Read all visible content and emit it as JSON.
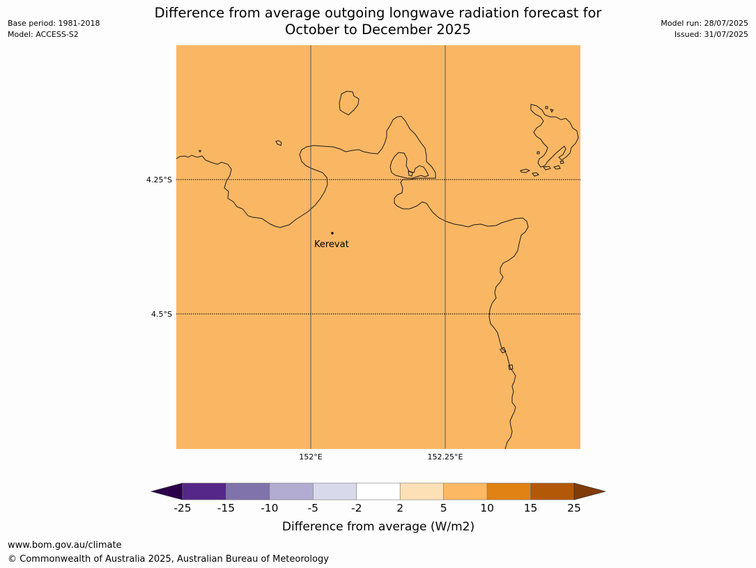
{
  "title_line1": "Difference from average outgoing longwave radiation forecast for",
  "title_line2": "October to December 2025",
  "meta_left": {
    "base_period": "Base period: 1981-2018",
    "model": "Model: ACCESS-S2"
  },
  "meta_right": {
    "model_run": "Model run: 28/07/2025",
    "issued": "Issued: 31/07/2025"
  },
  "map": {
    "fill_color": "#f9b764",
    "coastline_color": "#1a1a1a",
    "longitude_labels": [
      "152°E",
      "152.25°E"
    ],
    "latitude_labels": [
      "4.25°S",
      "4.5°S"
    ],
    "place": {
      "name": "Kerevat"
    }
  },
  "colorbar": {
    "title": "Difference from average (W/m2)",
    "ticks": [
      "-25",
      "-15",
      "-10",
      "-5",
      "-2",
      "2",
      "5",
      "10",
      "15",
      "25"
    ],
    "colors": [
      "#2d004b",
      "#542788",
      "#8073ac",
      "#b2abd2",
      "#d8daeb",
      "#ffffff",
      "#fee0b6",
      "#fdb863",
      "#e08214",
      "#b35806",
      "#7f3b08"
    ]
  },
  "footer": {
    "url": "www.bom.gov.au/climate",
    "copyright": "© Commonwealth of Australia 2025, Australian Bureau of Meteorology"
  }
}
